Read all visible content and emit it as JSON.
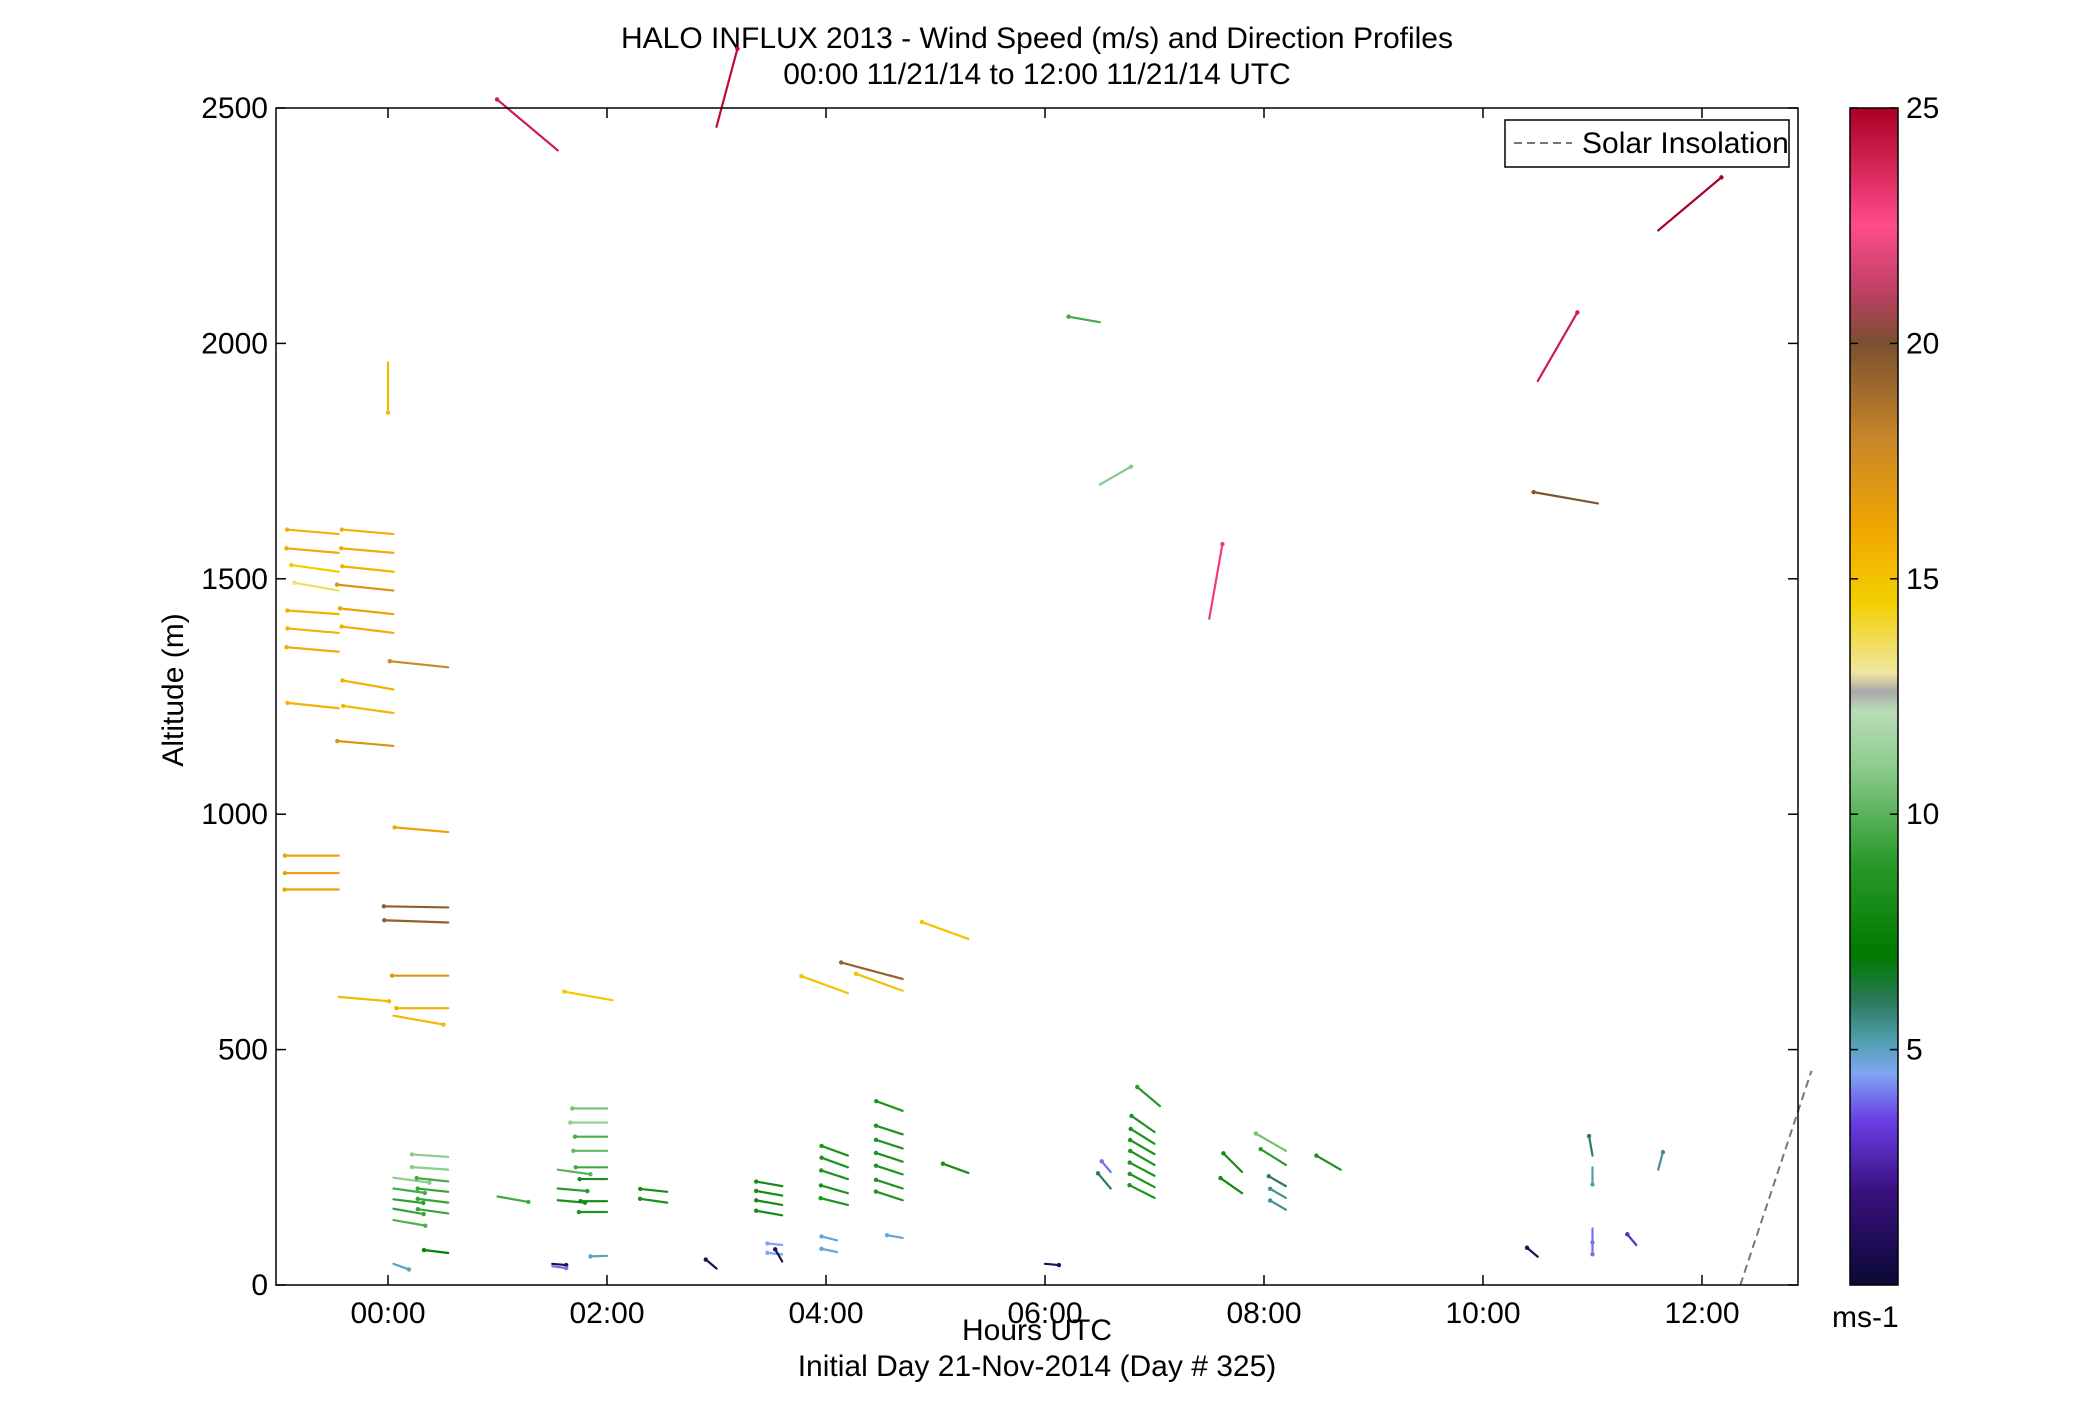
{
  "chart_data": {
    "type": "scatter",
    "title": "HALO INFLUX 2013 - Wind Speed (m/s) and Direction Profiles",
    "subtitle": "00:00 11/21/14 to 12:00 11/21/14  UTC",
    "xlabel": "Hours UTC",
    "xlabel2": "Initial Day 21-Nov-2014 (Day # 325)",
    "ylabel": "Altitude (m)",
    "xlim": [
      -1.0,
      13.0
    ],
    "ylim": [
      0,
      2500
    ],
    "x_ticks": [
      0,
      2,
      4,
      6,
      8,
      10,
      12
    ],
    "x_tick_labels": [
      "00:00",
      "02:00",
      "04:00",
      "06:00",
      "08:00",
      "10:00",
      "12:00"
    ],
    "y_ticks": [
      0,
      500,
      1000,
      1500,
      2000,
      2500
    ],
    "y_tick_labels": [
      "0",
      "500",
      "1000",
      "1500",
      "2000",
      "2500"
    ],
    "grid": false,
    "legend": {
      "placement": "top-right",
      "entries": [
        {
          "label": "Solar Insolation",
          "style": "dashed",
          "color": "#888888"
        }
      ]
    },
    "colorbar": {
      "min": 0,
      "max": 25,
      "ticks": [
        5,
        10,
        15,
        20,
        25
      ],
      "tick_labels": [
        "5",
        "10",
        "15",
        "20",
        "25"
      ],
      "unit_label": "ms-1",
      "stops": [
        [
          0,
          "#0a0a33"
        ],
        [
          2,
          "#3a1180"
        ],
        [
          3.5,
          "#6a3ee6"
        ],
        [
          4.5,
          "#7fa6f2"
        ],
        [
          5.2,
          "#4f9fae"
        ],
        [
          6,
          "#2d7a5e"
        ],
        [
          7,
          "#007a00"
        ],
        [
          9,
          "#2a9a2a"
        ],
        [
          11,
          "#8ccc8c"
        ],
        [
          12.2,
          "#b9dcb9"
        ],
        [
          12.6,
          "#a8a8a8"
        ],
        [
          13,
          "#f0e6a0"
        ],
        [
          14.5,
          "#f2d000"
        ],
        [
          16,
          "#f2a800"
        ],
        [
          18,
          "#c8862a"
        ],
        [
          20,
          "#7a5030"
        ],
        [
          21,
          "#b84060"
        ],
        [
          22.5,
          "#ff4c8c"
        ],
        [
          25,
          "#aa0022"
        ]
      ]
    },
    "solar_insolation": {
      "x": [
        12.35,
        13.0
      ],
      "y": [
        0,
        455
      ]
    },
    "series": [
      {
        "name": "Wind barbs",
        "values": [
          [
            -0.45,
            1595,
            15.7,
            -85
          ],
          [
            -0.45,
            1555,
            15.9,
            -85
          ],
          [
            -0.45,
            1515,
            14.5,
            -82
          ],
          [
            -0.45,
            1475,
            13.6,
            -80
          ],
          [
            -0.45,
            1425,
            15.6,
            -86
          ],
          [
            -0.45,
            1385,
            15.6,
            -85
          ],
          [
            -0.45,
            1345,
            15.9,
            -85
          ],
          [
            -0.45,
            1225,
            15.6,
            -84
          ],
          [
            -0.45,
            912,
            16.3,
            -90
          ],
          [
            -0.45,
            875,
            16.3,
            -90
          ],
          [
            -0.45,
            840,
            16.4,
            -90
          ],
          [
            -0.45,
            612,
            15.3,
            95
          ],
          [
            0.0,
            1960,
            15.3,
            180
          ],
          [
            0.05,
            1595,
            15.7,
            -85
          ],
          [
            0.05,
            1555,
            15.9,
            -85
          ],
          [
            0.05,
            1515,
            15.6,
            -84
          ],
          [
            0.05,
            1475,
            17.2,
            -84
          ],
          [
            0.05,
            1425,
            16.3,
            -84
          ],
          [
            0.05,
            1385,
            15.8,
            -83
          ],
          [
            0.05,
            1265,
            15.7,
            -80
          ],
          [
            0.05,
            1215,
            15.4,
            -82
          ],
          [
            0.05,
            1145,
            17.1,
            -85
          ],
          [
            0.05,
            572,
            15.4,
            100
          ],
          [
            0.05,
            228,
            11.0,
            98
          ],
          [
            0.05,
            205,
            9.6,
            98
          ],
          [
            0.05,
            182,
            9.1,
            97
          ],
          [
            0.05,
            162,
            9.3,
            100
          ],
          [
            0.05,
            138,
            9.8,
            100
          ],
          [
            0.05,
            45,
            5.0,
            110
          ],
          [
            0.55,
            1312,
            17.8,
            -84
          ],
          [
            0.55,
            962,
            16.3,
            -85
          ],
          [
            0.55,
            802,
            19.5,
            -89
          ],
          [
            0.55,
            770,
            19.4,
            -88
          ],
          [
            0.55,
            657,
            17.0,
            -90
          ],
          [
            0.55,
            588,
            15.7,
            -90
          ],
          [
            0.55,
            272,
            11.0,
            -86
          ],
          [
            0.55,
            245,
            11.0,
            -86
          ],
          [
            0.55,
            220,
            9.6,
            -84
          ],
          [
            0.55,
            198,
            9.3,
            -84
          ],
          [
            0.55,
            175,
            9.3,
            -83
          ],
          [
            0.55,
            152,
            9.3,
            -82
          ],
          [
            0.55,
            68,
            7.4,
            -83
          ],
          [
            1.0,
            188,
            9.5,
            100
          ],
          [
            1.5,
            45,
            1.0,
            95
          ],
          [
            1.5,
            40,
            4.0,
            98
          ],
          [
            1.55,
            245,
            10.0,
            98
          ],
          [
            1.55,
            205,
            9.0,
            95
          ],
          [
            1.55,
            180,
            8.3,
            95
          ],
          [
            2.0,
            375,
            10.5,
            -90
          ],
          [
            2.0,
            345,
            11.1,
            -90
          ],
          [
            2.0,
            315,
            9.7,
            -90
          ],
          [
            2.0,
            285,
            10.2,
            -90
          ],
          [
            2.0,
            250,
            9.5,
            -90
          ],
          [
            2.0,
            225,
            8.3,
            -90
          ],
          [
            2.0,
            178,
            8.0,
            -90
          ],
          [
            2.0,
            155,
            8.5,
            -90
          ],
          [
            2.0,
            62,
            5.0,
            -92
          ],
          [
            2.55,
            175,
            8.3,
            -82
          ],
          [
            2.55,
            198,
            8.2,
            -84
          ],
          [
            3.0,
            35,
            1.0,
            -50
          ],
          [
            2.05,
            605,
            14.8,
            -80
          ],
          [
            3.6,
            210,
            8.0,
            -80
          ],
          [
            3.6,
            190,
            8.0,
            -80
          ],
          [
            3.6,
            170,
            8.0,
            -80
          ],
          [
            3.6,
            148,
            8.0,
            -80
          ],
          [
            3.6,
            85,
            4.5,
            -84
          ],
          [
            3.6,
            65,
            4.5,
            -84
          ],
          [
            3.6,
            50,
            1.0,
            -30
          ],
          [
            4.2,
            620,
            15.0,
            -70
          ],
          [
            4.2,
            275,
            8.5,
            -70
          ],
          [
            4.2,
            250,
            8.5,
            -70
          ],
          [
            4.2,
            225,
            8.5,
            -72
          ],
          [
            4.2,
            195,
            8.5,
            -74
          ],
          [
            4.2,
            170,
            8.5,
            -76
          ],
          [
            4.1,
            95,
            4.8,
            -76
          ],
          [
            4.1,
            70,
            4.8,
            -78
          ],
          [
            4.7,
            650,
            19.3,
            -75
          ],
          [
            4.7,
            625,
            15.0,
            -70
          ],
          [
            4.7,
            370,
            8.5,
            -70
          ],
          [
            4.7,
            320,
            8.5,
            -72
          ],
          [
            4.7,
            290,
            8.5,
            -72
          ],
          [
            4.7,
            262,
            8.5,
            -72
          ],
          [
            4.7,
            235,
            8.5,
            -72
          ],
          [
            4.7,
            205,
            8.5,
            -72
          ],
          [
            4.7,
            180,
            8.5,
            -72
          ],
          [
            4.7,
            100,
            4.8,
            -80
          ],
          [
            5.3,
            735,
            15.0,
            -70
          ],
          [
            5.3,
            238,
            8.2,
            -70
          ],
          [
            6.5,
            1700,
            10.9,
            60
          ],
          [
            6.0,
            45,
            1.0,
            95
          ],
          [
            6.5,
            2045,
            9.6,
            -80
          ],
          [
            6.6,
            240,
            4.0,
            -40
          ],
          [
            6.6,
            205,
            6.0,
            -40
          ],
          [
            7.05,
            380,
            9.0,
            -50
          ],
          [
            7.0,
            325,
            8.5,
            -55
          ],
          [
            7.0,
            300,
            8.5,
            -58
          ],
          [
            7.0,
            278,
            8.5,
            -60
          ],
          [
            7.0,
            255,
            8.5,
            -60
          ],
          [
            7.0,
            232,
            8.5,
            -62
          ],
          [
            7.0,
            208,
            8.5,
            -62
          ],
          [
            7.0,
            185,
            8.5,
            -63
          ],
          [
            7.5,
            1415,
            23.0,
            10
          ],
          [
            7.8,
            240,
            8.0,
            -45
          ],
          [
            7.8,
            195,
            8.0,
            -55
          ],
          [
            8.2,
            285,
            10.5,
            -60
          ],
          [
            8.2,
            255,
            9.0,
            -58
          ],
          [
            8.2,
            210,
            6.0,
            -60
          ],
          [
            8.2,
            185,
            5.5,
            -60
          ],
          [
            8.2,
            160,
            5.5,
            -60
          ],
          [
            8.7,
            245,
            8.5,
            -60
          ],
          [
            10.5,
            1920,
            24.0,
            30
          ],
          [
            10.5,
            60,
            1.0,
            -50
          ],
          [
            11.0,
            275,
            6.0,
            -10
          ],
          [
            11.0,
            250,
            5.2,
            180
          ],
          [
            11.0,
            120,
            4.0,
            180
          ],
          [
            11.0,
            95,
            4.0,
            180
          ],
          [
            11.05,
            1660,
            19.8,
            -80
          ],
          [
            11.4,
            85,
            3.0,
            -40
          ],
          [
            11.6,
            245,
            5.5,
            15
          ],
          [
            11.6,
            2240,
            25.0,
            50
          ],
          [
            1.55,
            2410,
            24.0,
            -50
          ],
          [
            3.0,
            2460,
            24.5,
            15
          ]
        ]
      }
    ]
  }
}
